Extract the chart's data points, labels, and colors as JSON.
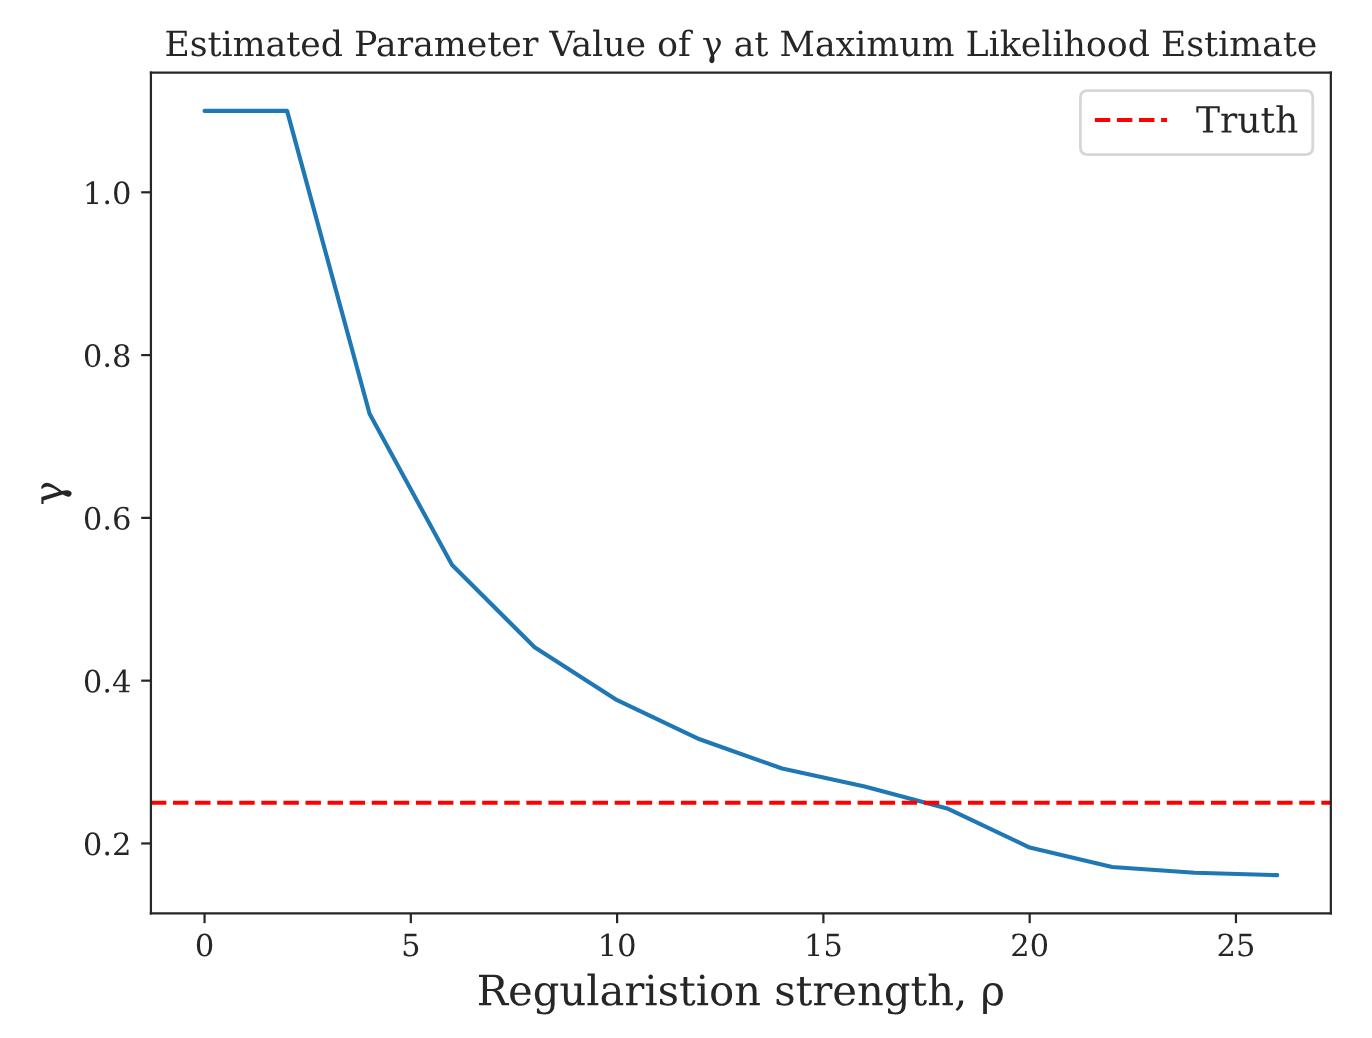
{
  "chart_data": {
    "type": "line",
    "title": "Estimated Parameter Value of γ at Maximum Likelihood Estimate",
    "xlabel": "Regularistion strength, ρ",
    "ylabel": "γ",
    "x": [
      0,
      2,
      4,
      6,
      8,
      10,
      12,
      14,
      16,
      18,
      20,
      22,
      24,
      26
    ],
    "series": [
      {
        "color": "#1f77b4",
        "values": [
          1.1,
          1.1,
          0.728,
          0.542,
          0.441,
          0.376,
          0.328,
          0.292,
          0.27,
          0.243,
          0.195,
          0.171,
          0.164,
          0.161
        ]
      }
    ],
    "ref_lines": [
      {
        "axis": "y",
        "value": 0.25,
        "label": "Truth",
        "color": "#ff0000",
        "line_style": "dashed"
      }
    ],
    "xlim": [
      -1.3,
      27.3
    ],
    "ylim": [
      0.114,
      1.147
    ],
    "xticks": [
      0,
      5,
      10,
      15,
      20,
      25
    ],
    "yticks": [
      0.2,
      0.4,
      0.6,
      0.8,
      {
        "value": 1.0,
        "label": "1.0"
      }
    ],
    "grid": false,
    "legend": "top right"
  }
}
